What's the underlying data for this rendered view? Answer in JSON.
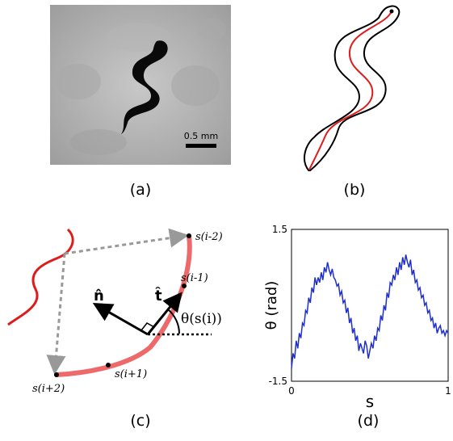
{
  "figure": {
    "captions": {
      "a": "(a)",
      "b": "(b)",
      "c": "(c)",
      "d": "(d)"
    },
    "panel_a": {
      "scale_label": "0.5 mm"
    },
    "panel_c": {
      "points": [
        "s(i-2)",
        "s(i-1)",
        "s(i+1)",
        "s(i+2)"
      ],
      "normal_label": "n̂",
      "tangent_label": "t̂",
      "angle_label": "θ(s(i))"
    }
  },
  "chart_data": {
    "type": "line",
    "xlabel": "s",
    "ylabel": "θ (rad)",
    "xlim": [
      0,
      1
    ],
    "ylim": [
      -1.5,
      1.5
    ],
    "xticks": [
      "0",
      "1"
    ],
    "yticks": [
      "1.5",
      "-1.5"
    ],
    "grid": false,
    "series": [
      {
        "color": "#1f2fcf",
        "x": [
          0.0,
          0.01,
          0.02,
          0.03,
          0.04,
          0.05,
          0.06,
          0.07,
          0.08,
          0.09,
          0.1,
          0.11,
          0.12,
          0.13,
          0.14,
          0.15,
          0.16,
          0.17,
          0.18,
          0.19,
          0.2,
          0.21,
          0.22,
          0.23,
          0.24,
          0.25,
          0.26,
          0.27,
          0.28,
          0.29,
          0.3,
          0.31,
          0.32,
          0.33,
          0.34,
          0.35,
          0.36,
          0.37,
          0.38,
          0.39,
          0.4,
          0.41,
          0.42,
          0.43,
          0.44,
          0.45,
          0.46,
          0.47,
          0.48,
          0.49,
          0.5,
          0.51,
          0.52,
          0.53,
          0.54,
          0.55,
          0.56,
          0.57,
          0.58,
          0.59,
          0.6,
          0.61,
          0.62,
          0.63,
          0.64,
          0.65,
          0.66,
          0.67,
          0.68,
          0.69,
          0.7,
          0.71,
          0.72,
          0.73,
          0.74,
          0.75,
          0.76,
          0.77,
          0.78,
          0.79,
          0.8,
          0.81,
          0.82,
          0.83,
          0.84,
          0.85,
          0.86,
          0.87,
          0.88,
          0.89,
          0.9,
          0.91,
          0.92,
          0.93,
          0.94,
          0.95,
          0.96,
          0.97,
          0.98,
          0.99,
          1.0
        ],
        "y": [
          -1.25,
          -0.95,
          -1.05,
          -0.7,
          -0.85,
          -0.55,
          -0.65,
          -0.35,
          -0.4,
          -0.1,
          -0.15,
          0.15,
          0.05,
          0.35,
          0.25,
          0.55,
          0.4,
          0.55,
          0.45,
          0.65,
          0.5,
          0.75,
          0.65,
          0.85,
          0.7,
          0.6,
          0.72,
          0.55,
          0.5,
          0.38,
          0.42,
          0.2,
          0.28,
          0.05,
          0.1,
          -0.15,
          -0.05,
          -0.35,
          -0.25,
          -0.55,
          -0.45,
          -0.7,
          -0.6,
          -0.9,
          -0.75,
          -0.85,
          -0.95,
          -0.7,
          -0.8,
          -1.05,
          -0.9,
          -0.75,
          -0.85,
          -0.6,
          -0.7,
          -0.45,
          -0.5,
          -0.2,
          -0.3,
          0.0,
          -0.1,
          0.25,
          0.15,
          0.45,
          0.4,
          0.6,
          0.5,
          0.75,
          0.6,
          0.85,
          0.7,
          0.95,
          0.8,
          1.0,
          0.85,
          0.75,
          0.9,
          0.6,
          0.7,
          0.45,
          0.5,
          0.3,
          0.35,
          0.15,
          0.2,
          0.0,
          0.05,
          -0.15,
          -0.1,
          -0.3,
          -0.25,
          -0.45,
          -0.35,
          -0.55,
          -0.45,
          -0.4,
          -0.55,
          -0.5,
          -0.6,
          -0.5,
          -0.55
        ]
      }
    ]
  }
}
